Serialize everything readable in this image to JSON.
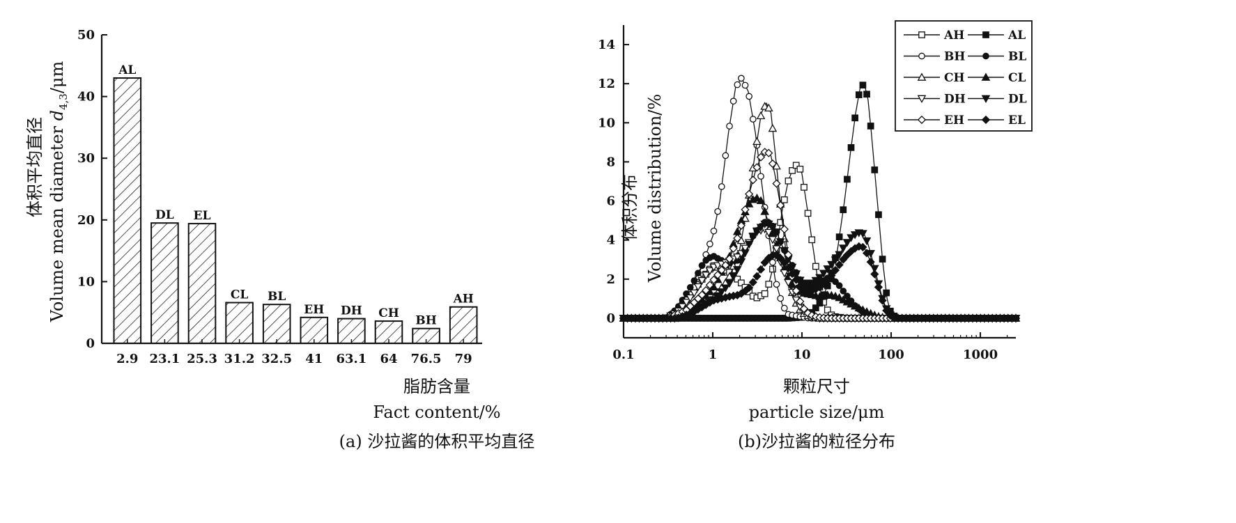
{
  "chart_data": [
    {
      "type": "bar",
      "title": "",
      "caption": "(a) 沙拉酱的体积平均直径",
      "xlabel_cn": "脂肪含量",
      "xlabel_en": "Fact content/%",
      "ylabel_cn": "体积平均直径",
      "ylabel_en_prefix": "Volume mean diameter ",
      "ylabel_symbol": "d",
      "ylabel_subscript": "4,3",
      "ylabel_suffix": "/μm",
      "ylim": [
        0,
        50
      ],
      "yticks": [
        "0",
        "10",
        "20",
        "30",
        "40",
        "50"
      ],
      "categories": [
        "2.9",
        "23.1",
        "25.3",
        "31.2",
        "32.5",
        "41",
        "63.1",
        "64",
        "76.5",
        "79"
      ],
      "bar_labels": [
        "AL",
        "DL",
        "EL",
        "CL",
        "BL",
        "EH",
        "DH",
        "CH",
        "BH",
        "AH"
      ],
      "values": [
        43,
        19.5,
        19.4,
        6.6,
        6.3,
        4.2,
        4.0,
        3.6,
        2.4,
        5.9
      ],
      "bar_fill": "hatched"
    },
    {
      "type": "line",
      "caption": "(b)沙拉酱的粒径分布",
      "xlabel_cn": "颗粒尺寸",
      "xlabel_en": "particle size/μm",
      "ylabel_cn": "体积分布",
      "ylabel_en": "Volume distribution/%",
      "x_scale": "log",
      "xlim": [
        0.1,
        2500
      ],
      "ylim": [
        -1,
        15
      ],
      "xticks": [
        "0.1",
        "1",
        "10",
        "100",
        "1000"
      ],
      "yticks": [
        "0",
        "2",
        "4",
        "6",
        "8",
        "10",
        "12",
        "14"
      ],
      "legend_position": "top-right",
      "series": [
        {
          "name": "AH",
          "marker": "square-open",
          "points": [
            [
              0.1,
              0
            ],
            [
              0.3,
              0
            ],
            [
              0.4,
              0.3
            ],
            [
              0.6,
              1.4
            ],
            [
              1,
              2.7
            ],
            [
              1.5,
              2.4
            ],
            [
              2,
              1.9
            ],
            [
              2.5,
              1.4
            ],
            [
              3,
              1.0
            ],
            [
              4,
              1.3
            ],
            [
              5,
              3.0
            ],
            [
              6,
              5.5
            ],
            [
              7,
              7.0
            ],
            [
              8,
              7.7
            ],
            [
              9,
              7.9
            ],
            [
              10,
              7.4
            ],
            [
              12,
              5.0
            ],
            [
              15,
              2.0
            ],
            [
              18,
              0.6
            ],
            [
              22,
              0.1
            ],
            [
              30,
              0
            ],
            [
              2500,
              0
            ]
          ]
        },
        {
          "name": "AL",
          "marker": "square-filled",
          "points": [
            [
              0.1,
              0
            ],
            [
              7,
              0
            ],
            [
              10,
              0.05
            ],
            [
              13,
              0.3
            ],
            [
              16,
              0.8
            ],
            [
              20,
              1.8
            ],
            [
              25,
              3.5
            ],
            [
              30,
              6.0
            ],
            [
              35,
              8.5
            ],
            [
              40,
              10.5
            ],
            [
              45,
              11.8
            ],
            [
              50,
              12.0
            ],
            [
              55,
              11.2
            ],
            [
              60,
              9.5
            ],
            [
              70,
              6.0
            ],
            [
              80,
              3.0
            ],
            [
              90,
              1.0
            ],
            [
              100,
              0.2
            ],
            [
              120,
              0
            ],
            [
              2500,
              0
            ]
          ]
        },
        {
          "name": "BH",
          "marker": "circle-open",
          "points": [
            [
              0.1,
              0
            ],
            [
              0.3,
              0
            ],
            [
              0.4,
              0.3
            ],
            [
              0.6,
              1.4
            ],
            [
              0.8,
              3.0
            ],
            [
              1,
              4.2
            ],
            [
              1.2,
              6.0
            ],
            [
              1.5,
              9.5
            ],
            [
              1.8,
              11.8
            ],
            [
              2.1,
              12.3
            ],
            [
              2.5,
              11.6
            ],
            [
              3,
              9.5
            ],
            [
              4,
              5.0
            ],
            [
              5,
              2.0
            ],
            [
              6,
              0.7
            ],
            [
              7,
              0.2
            ],
            [
              9,
              0.1
            ],
            [
              12,
              0
            ],
            [
              2500,
              0
            ]
          ]
        },
        {
          "name": "BL",
          "marker": "circle-filled",
          "points": [
            [
              0.1,
              0
            ],
            [
              0.3,
              0
            ],
            [
              0.4,
              0.5
            ],
            [
              0.6,
              1.8
            ],
            [
              0.8,
              2.9
            ],
            [
              1,
              3.2
            ],
            [
              1.2,
              3.0
            ],
            [
              1.5,
              2.8
            ],
            [
              2,
              3.0
            ],
            [
              2.5,
              3.8
            ],
            [
              3,
              4.4
            ],
            [
              4,
              5.0
            ],
            [
              5,
              4.6
            ],
            [
              6,
              3.7
            ],
            [
              8,
              2.6
            ],
            [
              10,
              1.8
            ],
            [
              13,
              1.6
            ],
            [
              16,
              1.8
            ],
            [
              20,
              2.1
            ],
            [
              25,
              1.8
            ],
            [
              30,
              1.3
            ],
            [
              40,
              0.6
            ],
            [
              55,
              0.1
            ],
            [
              70,
              0
            ],
            [
              2500,
              0
            ]
          ]
        },
        {
          "name": "CH",
          "marker": "triangle-up-open",
          "points": [
            [
              0.1,
              0
            ],
            [
              0.4,
              0
            ],
            [
              0.6,
              0.4
            ],
            [
              1,
              1.0
            ],
            [
              1.5,
              2.0
            ],
            [
              2,
              3.5
            ],
            [
              2.5,
              6.0
            ],
            [
              3,
              8.5
            ],
            [
              3.5,
              10.5
            ],
            [
              4,
              11.0
            ],
            [
              4.5,
              10.5
            ],
            [
              5,
              8.5
            ],
            [
              6,
              5.0
            ],
            [
              7,
              2.5
            ],
            [
              8,
              1.0
            ],
            [
              10,
              0.3
            ],
            [
              12,
              0.1
            ],
            [
              15,
              0
            ],
            [
              2500,
              0
            ]
          ]
        },
        {
          "name": "CL",
          "marker": "triangle-up-filled",
          "points": [
            [
              0.1,
              0
            ],
            [
              0.4,
              0
            ],
            [
              0.6,
              0.5
            ],
            [
              1,
              1.5
            ],
            [
              1.5,
              3.0
            ],
            [
              2,
              4.8
            ],
            [
              2.5,
              5.8
            ],
            [
              3,
              6.2
            ],
            [
              3.5,
              6.0
            ],
            [
              4,
              5.2
            ],
            [
              5,
              4.0
            ],
            [
              6,
              2.8
            ],
            [
              8,
              1.6
            ],
            [
              10,
              1.3
            ],
            [
              13,
              1.2
            ],
            [
              16,
              1.1
            ],
            [
              20,
              1.2
            ],
            [
              25,
              1.1
            ],
            [
              30,
              0.9
            ],
            [
              40,
              0.6
            ],
            [
              55,
              0.3
            ],
            [
              70,
              0.1
            ],
            [
              90,
              0
            ],
            [
              2500,
              0
            ]
          ]
        },
        {
          "name": "DH",
          "marker": "triangle-down-open",
          "points": [
            [
              0.1,
              0
            ],
            [
              0.3,
              0
            ],
            [
              0.4,
              0.3
            ],
            [
              0.6,
              1.2
            ],
            [
              0.8,
              2.1
            ],
            [
              1,
              2.6
            ],
            [
              1.5,
              2.9
            ],
            [
              2,
              3.2
            ],
            [
              2.5,
              3.8
            ],
            [
              3,
              4.4
            ],
            [
              4,
              4.6
            ],
            [
              5,
              3.8
            ],
            [
              6,
              2.6
            ],
            [
              8,
              1.2
            ],
            [
              10,
              0.4
            ],
            [
              13,
              0.1
            ],
            [
              15,
              0
            ],
            [
              2500,
              0
            ]
          ]
        },
        {
          "name": "DL",
          "marker": "triangle-down-filled",
          "points": [
            [
              0.1,
              0
            ],
            [
              0.4,
              0
            ],
            [
              0.6,
              0.3
            ],
            [
              1,
              0.9
            ],
            [
              1.5,
              1.7
            ],
            [
              2,
              2.7
            ],
            [
              2.5,
              3.7
            ],
            [
              3,
              4.4
            ],
            [
              4,
              4.9
            ],
            [
              5,
              4.6
            ],
            [
              6,
              3.7
            ],
            [
              8,
              2.5
            ],
            [
              10,
              1.8
            ],
            [
              13,
              1.8
            ],
            [
              16,
              2.1
            ],
            [
              20,
              2.6
            ],
            [
              25,
              3.1
            ],
            [
              30,
              3.7
            ],
            [
              35,
              4.1
            ],
            [
              40,
              4.3
            ],
            [
              45,
              4.4
            ],
            [
              50,
              4.3
            ],
            [
              55,
              3.8
            ],
            [
              60,
              3.2
            ],
            [
              70,
              2.0
            ],
            [
              80,
              1.0
            ],
            [
              90,
              0.4
            ],
            [
              100,
              0.1
            ],
            [
              110,
              0
            ],
            [
              2500,
              0
            ]
          ]
        },
        {
          "name": "EH",
          "marker": "diamond-open",
          "points": [
            [
              0.1,
              0
            ],
            [
              0.3,
              0
            ],
            [
              0.5,
              0.4
            ],
            [
              0.8,
              1.3
            ],
            [
              1,
              1.9
            ],
            [
              1.5,
              2.9
            ],
            [
              2,
              4.4
            ],
            [
              2.5,
              6.2
            ],
            [
              3,
              7.5
            ],
            [
              3.5,
              8.3
            ],
            [
              4,
              8.6
            ],
            [
              4.5,
              8.3
            ],
            [
              5,
              7.3
            ],
            [
              6,
              5.3
            ],
            [
              7,
              3.3
            ],
            [
              8,
              1.8
            ],
            [
              10,
              0.6
            ],
            [
              12,
              0.2
            ],
            [
              15,
              0.05
            ],
            [
              20,
              0
            ],
            [
              2500,
              0
            ]
          ]
        },
        {
          "name": "EL",
          "marker": "diamond-filled",
          "points": [
            [
              0.1,
              0
            ],
            [
              0.4,
              0
            ],
            [
              0.6,
              0.3
            ],
            [
              1,
              0.9
            ],
            [
              1.5,
              1.1
            ],
            [
              2,
              1.2
            ],
            [
              2.5,
              1.5
            ],
            [
              3,
              2.0
            ],
            [
              4,
              3.0
            ],
            [
              5,
              3.3
            ],
            [
              6,
              3.0
            ],
            [
              8,
              2.2
            ],
            [
              10,
              1.5
            ],
            [
              13,
              1.4
            ],
            [
              16,
              1.6
            ],
            [
              20,
              2.0
            ],
            [
              25,
              2.6
            ],
            [
              30,
              3.1
            ],
            [
              35,
              3.4
            ],
            [
              40,
              3.6
            ],
            [
              45,
              3.7
            ],
            [
              50,
              3.6
            ],
            [
              55,
              3.2
            ],
            [
              60,
              2.8
            ],
            [
              70,
              1.8
            ],
            [
              80,
              0.9
            ],
            [
              90,
              0.3
            ],
            [
              100,
              0.1
            ],
            [
              110,
              0
            ],
            [
              2500,
              0
            ]
          ]
        }
      ]
    }
  ]
}
